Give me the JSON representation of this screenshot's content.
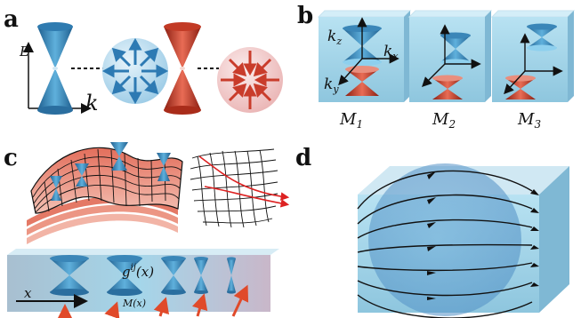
{
  "panels": {
    "a": {
      "letter": "a",
      "energy_axis": "E",
      "momentum_axis": "k"
    },
    "b": {
      "letter": "b",
      "kz": "k",
      "kz_sub": "z",
      "kx": "k",
      "kx_sub": "x",
      "ky": "k",
      "ky_sub": "y",
      "cubes": [
        {
          "label": "M",
          "sub": "1"
        },
        {
          "label": "M",
          "sub": "2"
        },
        {
          "label": "M",
          "sub": "3"
        }
      ]
    },
    "c": {
      "letter": "c",
      "metric_label": "g",
      "metric_sup": "ij",
      "metric_arg": "(x)",
      "axis_label": "x",
      "field_label": "M(x)"
    },
    "d": {
      "letter": "d"
    }
  },
  "colors": {
    "blue": "#3a86b8",
    "red": "#c93c2b",
    "box": "#9fd3ea",
    "sphere_blue": "#a9d4ec",
    "sphere_red": "#f1c6c6"
  }
}
